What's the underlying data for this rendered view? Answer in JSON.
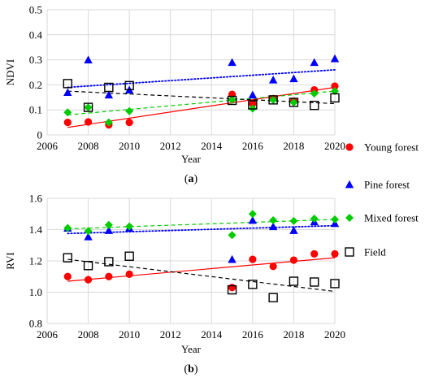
{
  "figure": {
    "legend": [
      {
        "label": "Young forest",
        "marker": "circle",
        "color": "#ff0000"
      },
      {
        "label": "Pine forest",
        "marker": "triangle",
        "color": "#0000ff"
      },
      {
        "label": "Mixed forest",
        "marker": "diamond",
        "color": "#00cc00"
      },
      {
        "label": "Field",
        "marker": "open-square",
        "color": "#000000"
      }
    ]
  },
  "chart_data": [
    {
      "type": "scatter",
      "panel_label": "(a)",
      "xlabel": "Year",
      "ylabel": "NDVI",
      "xlim": [
        2006,
        2020
      ],
      "ylim": [
        0,
        0.5
      ],
      "xticks": [
        2006,
        2008,
        2010,
        2012,
        2014,
        2016,
        2018,
        2020
      ],
      "yticks": [
        0,
        0.1,
        0.2,
        0.3,
        0.4,
        0.5
      ],
      "grid": "vertical and horizontal",
      "legend_position": "right",
      "series": [
        {
          "name": "Young forest",
          "color": "#ff0000",
          "marker": "circle",
          "trend": "solid",
          "x": [
            2007,
            2008,
            2009,
            2010,
            2015,
            2016,
            2017,
            2018,
            2019,
            2020
          ],
          "y": [
            0.05,
            0.052,
            0.04,
            0.05,
            0.162,
            0.125,
            0.145,
            0.135,
            0.18,
            0.195
          ],
          "trendline": [
            [
              2007,
              0.03
            ],
            [
              2020,
              0.19
            ]
          ]
        },
        {
          "name": "Pine forest",
          "color": "#0000ff",
          "marker": "triangle",
          "trend": "dotted",
          "x": [
            2007,
            2008,
            2009,
            2010,
            2015,
            2016,
            2017,
            2018,
            2019,
            2020
          ],
          "y": [
            0.17,
            0.3,
            0.16,
            0.18,
            0.29,
            0.16,
            0.22,
            0.225,
            0.29,
            0.305
          ],
          "trendline": [
            [
              2007,
              0.19
            ],
            [
              2020,
              0.26
            ]
          ]
        },
        {
          "name": "Mixed forest",
          "color": "#00cc00",
          "marker": "diamond",
          "trend": "dashed",
          "x": [
            2007,
            2008,
            2009,
            2010,
            2015,
            2016,
            2017,
            2018,
            2019,
            2020
          ],
          "y": [
            0.09,
            0.11,
            0.05,
            0.095,
            0.14,
            0.105,
            0.14,
            0.13,
            0.165,
            0.175
          ],
          "trendline": [
            [
              2007,
              0.08
            ],
            [
              2020,
              0.175
            ]
          ]
        },
        {
          "name": "Field",
          "color": "#000000",
          "marker": "open-square",
          "trend": "dashed",
          "x": [
            2007,
            2008,
            2009,
            2010,
            2015,
            2016,
            2017,
            2018,
            2019,
            2020
          ],
          "y": [
            0.205,
            0.11,
            0.19,
            0.197,
            0.138,
            0.12,
            0.14,
            0.13,
            0.118,
            0.148
          ],
          "trendline": [
            [
              2007,
              0.175
            ],
            [
              2020,
              0.125
            ]
          ]
        }
      ]
    },
    {
      "type": "scatter",
      "panel_label": "(b)",
      "xlabel": "Year",
      "ylabel": "RVI",
      "xlim": [
        2006,
        2020
      ],
      "ylim": [
        0.8,
        1.6
      ],
      "xticks": [
        2006,
        2008,
        2010,
        2012,
        2014,
        2016,
        2018,
        2020
      ],
      "yticks": [
        0.8,
        1.0,
        1.2,
        1.4,
        1.6
      ],
      "grid": "vertical and horizontal",
      "legend_position": "right",
      "series": [
        {
          "name": "Young forest",
          "color": "#ff0000",
          "marker": "circle",
          "trend": "solid",
          "x": [
            2007,
            2008,
            2009,
            2010,
            2015,
            2016,
            2017,
            2018,
            2019,
            2020
          ],
          "y": [
            1.1,
            1.08,
            1.1,
            1.115,
            1.03,
            1.21,
            1.165,
            1.205,
            1.245,
            1.245
          ],
          "trendline": [
            [
              2007,
              1.07
            ],
            [
              2020,
              1.22
            ]
          ]
        },
        {
          "name": "Pine forest",
          "color": "#0000ff",
          "marker": "triangle",
          "trend": "dotted",
          "x": [
            2007,
            2008,
            2009,
            2010,
            2015,
            2016,
            2017,
            2018,
            2019,
            2020
          ],
          "y": [
            1.41,
            1.355,
            1.395,
            1.41,
            1.21,
            1.46,
            1.42,
            1.395,
            1.45,
            1.44
          ],
          "trendline": [
            [
              2007,
              1.375
            ],
            [
              2020,
              1.425
            ]
          ]
        },
        {
          "name": "Mixed forest",
          "color": "#00cc00",
          "marker": "diamond",
          "trend": "dashed",
          "x": [
            2007,
            2008,
            2009,
            2010,
            2015,
            2016,
            2017,
            2018,
            2019,
            2020
          ],
          "y": [
            1.41,
            1.39,
            1.43,
            1.42,
            1.365,
            1.5,
            1.46,
            1.455,
            1.47,
            1.465
          ],
          "trendline": [
            [
              2007,
              1.405
            ],
            [
              2020,
              1.465
            ]
          ]
        },
        {
          "name": "Field",
          "color": "#000000",
          "marker": "open-square",
          "trend": "dashed",
          "x": [
            2007,
            2008,
            2009,
            2010,
            2015,
            2016,
            2017,
            2018,
            2019,
            2020
          ],
          "y": [
            1.22,
            1.17,
            1.195,
            1.23,
            1.015,
            1.05,
            0.965,
            1.07,
            1.065,
            1.055
          ],
          "trendline": [
            [
              2007,
              1.21
            ],
            [
              2020,
              1.005
            ]
          ]
        }
      ]
    }
  ]
}
